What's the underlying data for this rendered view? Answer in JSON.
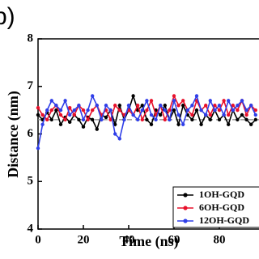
{
  "chart_data": {
    "type": "line",
    "panel_label": "b)",
    "x_label": "Time (ns)",
    "y_label": "Distance (nm)",
    "x": [
      0,
      2,
      4,
      6,
      8,
      10,
      12,
      14,
      16,
      18,
      20,
      22,
      24,
      26,
      28,
      30,
      32,
      34,
      36,
      38,
      40,
      42,
      44,
      46,
      48,
      50,
      52,
      54,
      56,
      58,
      60,
      62,
      64,
      66,
      68,
      70,
      72,
      74,
      76,
      78,
      80,
      82,
      84,
      86,
      88,
      90,
      92,
      94,
      96
    ],
    "series": [
      {
        "name": "1OH-GQD",
        "color": "#000000",
        "values": [
          6.4,
          6.3,
          6.45,
          6.3,
          6.5,
          6.2,
          6.35,
          6.25,
          6.4,
          6.3,
          6.15,
          6.35,
          6.3,
          6.1,
          6.4,
          6.35,
          6.5,
          6.2,
          6.6,
          6.3,
          6.5,
          6.8,
          6.5,
          6.6,
          6.3,
          6.2,
          6.5,
          6.4,
          6.6,
          6.3,
          6.5,
          6.2,
          6.6,
          6.4,
          6.3,
          6.5,
          6.2,
          6.4,
          6.3,
          6.5,
          6.3,
          6.4,
          6.2,
          6.5,
          6.3,
          6.4,
          6.3,
          6.2,
          6.3
        ]
      },
      {
        "name": "6OH-GQD",
        "color": "#e8102a",
        "values": [
          6.55,
          6.4,
          6.3,
          6.5,
          6.6,
          6.4,
          6.3,
          6.55,
          6.4,
          6.6,
          6.5,
          6.3,
          6.5,
          6.6,
          6.4,
          6.5,
          6.3,
          6.6,
          6.5,
          6.4,
          6.5,
          6.4,
          6.6,
          6.3,
          6.5,
          6.7,
          6.4,
          6.6,
          6.3,
          6.5,
          6.8,
          6.6,
          6.7,
          6.5,
          6.4,
          6.7,
          6.5,
          6.6,
          6.4,
          6.6,
          6.5,
          6.7,
          6.4,
          6.6,
          6.5,
          6.7,
          6.4,
          6.6,
          6.5
        ]
      },
      {
        "name": "12OH-GQD",
        "color": "#2f3ee8",
        "values": [
          5.7,
          6.2,
          6.5,
          6.7,
          6.6,
          6.5,
          6.7,
          6.4,
          6.5,
          6.6,
          6.3,
          6.5,
          6.8,
          6.6,
          6.3,
          6.6,
          6.5,
          6.0,
          5.9,
          6.3,
          6.6,
          6.4,
          6.3,
          6.5,
          6.7,
          6.4,
          6.3,
          6.6,
          6.5,
          6.3,
          6.7,
          6.4,
          6.2,
          6.5,
          6.6,
          6.8,
          6.5,
          6.4,
          6.7,
          6.5,
          6.6,
          6.4,
          6.7,
          6.5,
          6.6,
          6.7,
          6.5,
          6.6,
          6.4
        ]
      }
    ],
    "reference_line": 6.3,
    "xlim": [
      0,
      97.5
    ],
    "xticks": [
      0,
      20,
      40,
      60,
      80
    ],
    "ylim": [
      4,
      8
    ],
    "yticks": [
      4,
      5,
      6,
      7,
      8
    ]
  }
}
